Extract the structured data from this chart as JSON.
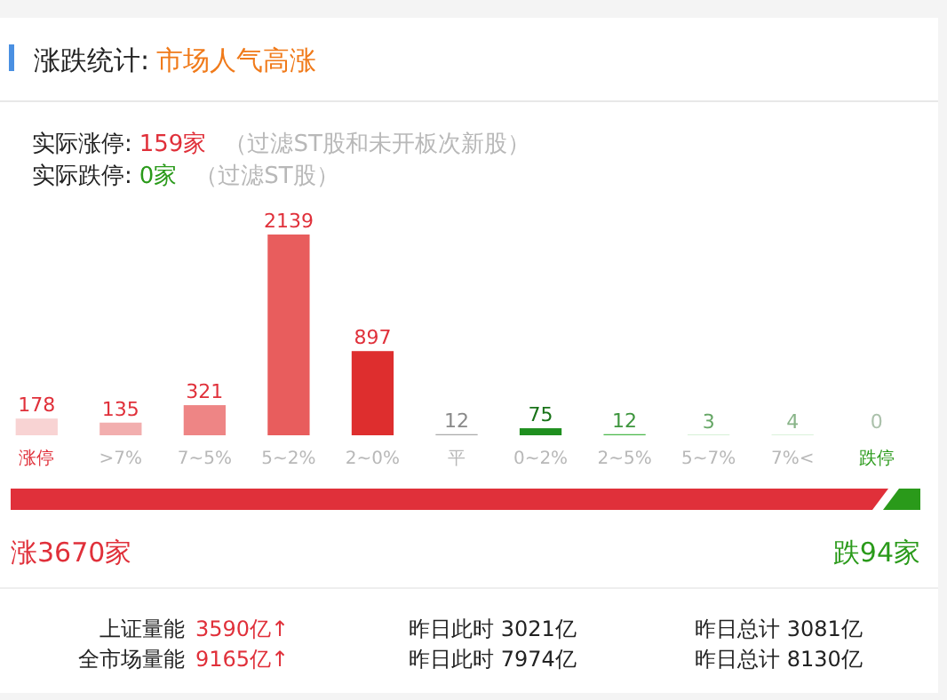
{
  "chart_data": {
    "type": "bar",
    "title": "涨跌统计:",
    "subtitle": "市场人气高涨",
    "categories": [
      "涨停",
      ">7%",
      "7~5%",
      "5~2%",
      "2~0%",
      "平",
      "0~2%",
      "2~5%",
      "5~7%",
      "7%<",
      "跌停"
    ],
    "values": [
      178,
      135,
      321,
      2139,
      897,
      12,
      75,
      12,
      3,
      4,
      0
    ],
    "colors": [
      "#f8d3d3",
      "#f2aeae",
      "#ee8585",
      "#e85d5d",
      "#de2e2e",
      "#aaaaaa",
      "#1f8f1f",
      "#4cb84c",
      "#7fcf7f",
      "#a8dfa8",
      "#d4efd4"
    ],
    "data_labels": true,
    "annotations": [
      "实际涨停:",
      "159家",
      "（过滤ST股和未开板次新股）",
      "实际跌停:",
      "0家",
      "（过滤ST股）",
      "涨3670家",
      "跌94家",
      "上证量能",
      "3590亿↑",
      "昨日此时 3021亿",
      "昨日总计 3081亿",
      "全市场量能",
      "9165亿↑",
      "昨日此时 7974亿",
      "昨日总计 8130亿"
    ]
  }
}
